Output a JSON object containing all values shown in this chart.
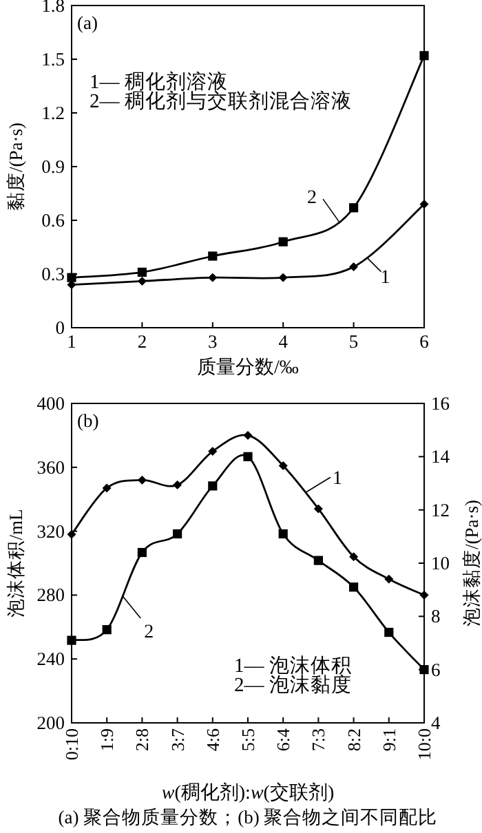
{
  "chart_data": [
    {
      "type": "line",
      "title": "(a)",
      "xlabel": "质量分数/‰",
      "ylabel": "黏度/(Pa·s)",
      "x": [
        1,
        2,
        3,
        4,
        5,
        6
      ],
      "series": [
        {
          "name": "1",
          "color": "#000000",
          "marker": "diamond",
          "values": [
            0.24,
            0.26,
            0.28,
            0.28,
            0.34,
            0.69
          ]
        },
        {
          "name": "2",
          "color": "#000000",
          "marker": "square",
          "values": [
            0.28,
            0.31,
            0.4,
            0.48,
            0.67,
            1.52
          ]
        }
      ],
      "xlim": [
        1,
        6
      ],
      "xticks": [
        1,
        2,
        3,
        4,
        5,
        6
      ],
      "ylim": [
        0,
        1.8
      ],
      "yticks": [
        0,
        0.3,
        0.6,
        0.9,
        1.2,
        1.5,
        1.8
      ],
      "annotations": [
        "1— 稠化剂溶液",
        "2— 稠化剂与交联剂混合溶液"
      ]
    },
    {
      "type": "line",
      "title": "(b)",
      "xlabel": "*w*(稠化剂):*w*(交联剂)",
      "ylabel": "泡沫体积/mL",
      "y2label": "泡沫黏度/(Pa·s)",
      "categories": [
        "0:10",
        "1:9",
        "2:8",
        "3:7",
        "4:6",
        "5:5",
        "6:4",
        "7:3",
        "8:2",
        "9:1",
        "10:0"
      ],
      "series": [
        {
          "name": "1",
          "color": "#000000",
          "marker": "diamond",
          "values": [
            318,
            347,
            352,
            349,
            370,
            380,
            361,
            334,
            304,
            290,
            280
          ]
        },
        {
          "name": "2",
          "color": "#000000",
          "marker": "square",
          "axis": "y2",
          "values": [
            7.1,
            7.5,
            10.4,
            11.1,
            12.9,
            14.0,
            11.1,
            10.1,
            9.1,
            7.4,
            6.0
          ]
        }
      ],
      "ylim": [
        200,
        400
      ],
      "yticks": [
        200,
        240,
        280,
        320,
        360,
        400
      ],
      "y2lim": [
        4,
        16
      ],
      "y2ticks": [
        4,
        6,
        8,
        10,
        12,
        14,
        16
      ],
      "annotations": [
        "1— 泡沫体积",
        "2— 泡沫黏度",
        "(a) 聚合物质量分数；(b) 聚合物之间不同配比"
      ]
    }
  ]
}
